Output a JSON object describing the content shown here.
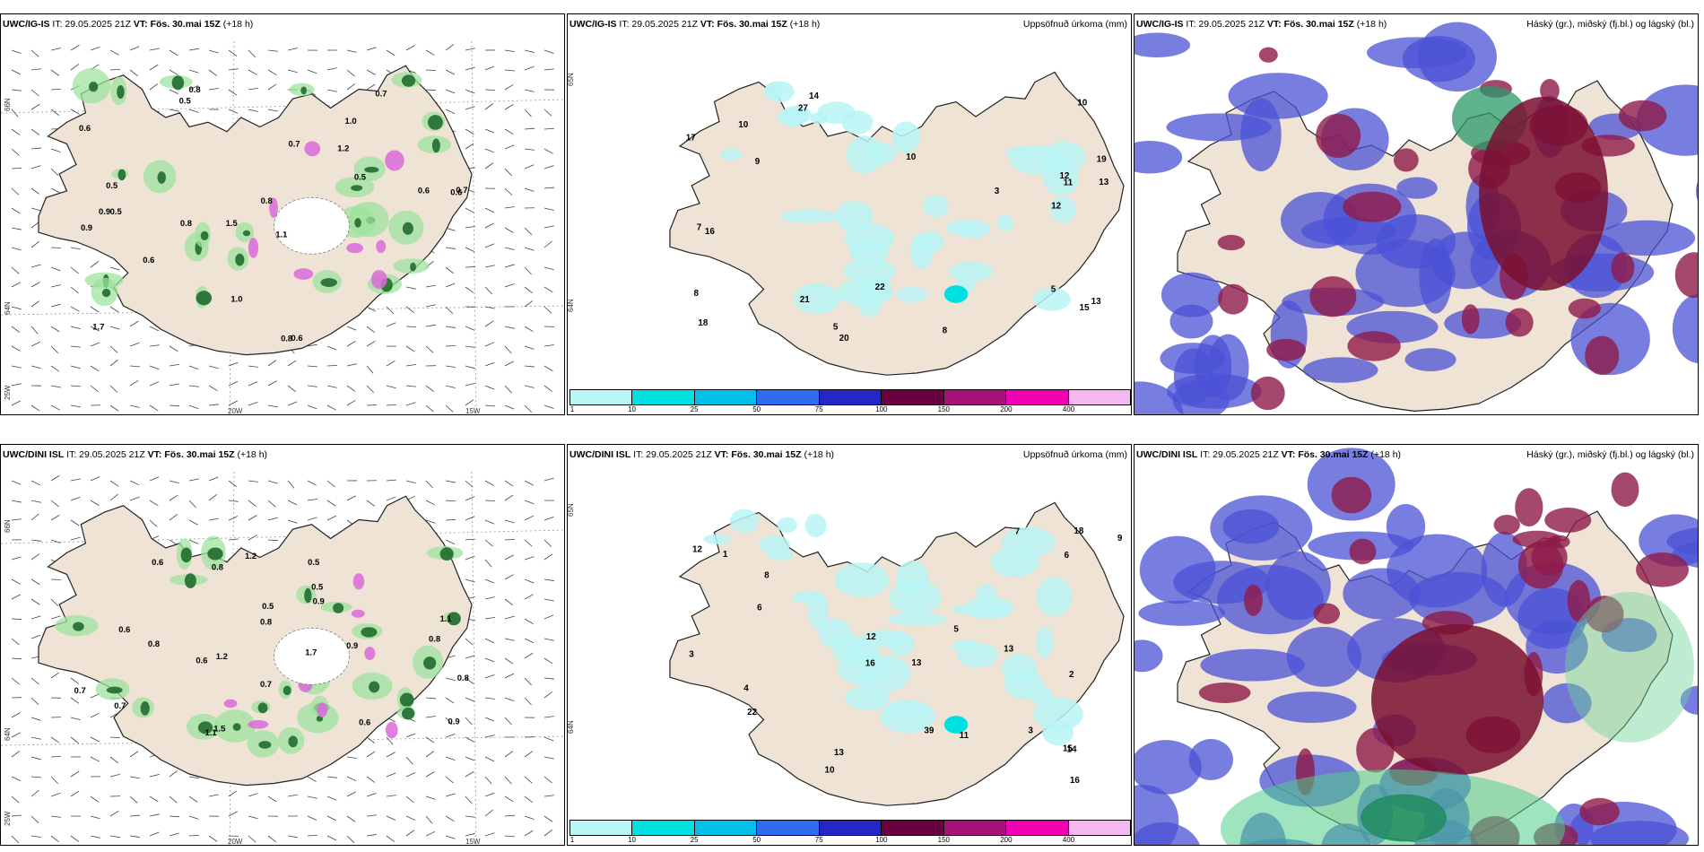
{
  "colorbar": {
    "ticks": [
      "1",
      "10",
      "25",
      "50",
      "75",
      "100",
      "150",
      "200",
      "400"
    ],
    "colors": [
      "#b9f5f5",
      "#00e0e0",
      "#00bfe8",
      "#2f6cf0",
      "#2525c8",
      "#6a0040",
      "#a8107a",
      "#f000b0",
      "#f4b8f0"
    ]
  },
  "rows": [
    {
      "model_label": "UWC/IG-IS",
      "panels": [
        {
          "name": "windmap",
          "it": "IT: 29.05.2025 21Z",
          "vt_label": "VT:",
          "vt_value": "Fös. 30.mai 15Z",
          "lead": "(+18 h)",
          "right_title": "",
          "lat_labels": [
            "66N",
            "64N",
            "25W"
          ],
          "lon_labels": [
            "20W",
            "15W"
          ],
          "values": [
            "0.8",
            "1.0",
            "0.6",
            "1.5",
            "1.1",
            "0.5",
            "0.6",
            "1.2",
            "0.9",
            "0.7",
            "0.8",
            "1.7",
            "0.5",
            "0.8",
            "0.8",
            "0.6",
            "1.0",
            "0.7",
            "0.5",
            "0.6",
            "0.5",
            "0.9",
            "0.7",
            "0.6"
          ]
        },
        {
          "name": "precip",
          "it": "IT: 29.05.2025 21Z",
          "vt_label": "VT:",
          "vt_value": "Fös. 30.mai 15Z",
          "lead": "(+18 h)",
          "right_title": "Uppsöfnuð úrkoma (mm)",
          "lat_labels": [
            "65N",
            "64N"
          ],
          "values": [
            "5",
            "19",
            "13",
            "10",
            "18",
            "14",
            "12",
            "21",
            "10",
            "9",
            "13",
            "17",
            "12",
            "20",
            "8",
            "10",
            "15",
            "27",
            "22",
            "11",
            "7",
            "16",
            "8",
            "3",
            "5"
          ]
        },
        {
          "name": "cloud",
          "it": "IT: 29.05.2025 21Z",
          "vt_label": "VT:",
          "vt_value": "Fös. 30.mai 15Z",
          "lead": "(+18 h)",
          "right_title": "Háský (gr.), miðský (fj.bl.) og lágský (bl.)"
        }
      ]
    },
    {
      "model_label": "UWC/DINI ISL",
      "panels": [
        {
          "name": "windmap",
          "it": "IT: 29.05.2025 21Z",
          "vt_label": "VT:",
          "vt_value": "Fös. 30.mai 15Z",
          "lead": "(+18 h)",
          "right_title": "",
          "lat_labels": [
            "66N",
            "64N",
            "25W"
          ],
          "lon_labels": [
            "20W",
            "15W"
          ],
          "values": [
            "1.1",
            "0.5",
            "0.8",
            "1.1",
            "0.6",
            "0.9",
            "0.5",
            "1.2",
            "0.8",
            "0.6",
            "0.8",
            "1.7",
            "0.9",
            "1.2",
            "0.8",
            "0.5",
            "0.6",
            "0.7",
            "0.7",
            "1.5",
            "0.8",
            "0.6",
            "0.7",
            "0.9"
          ]
        },
        {
          "name": "precip",
          "it": "IT: 29.05.2025 21Z",
          "vt_label": "VT:",
          "vt_value": "Fös. 30.mai 15Z",
          "lead": "(+18 h)",
          "right_title": "Uppsöfnuð úrkoma (mm)",
          "lat_labels": [
            "65N",
            "64N"
          ],
          "values": [
            "2",
            "13",
            "14",
            "12",
            "15",
            "18",
            "12",
            "9",
            "10",
            "13",
            "16",
            "39",
            "22",
            "13",
            "16",
            "6",
            "5",
            "11",
            "7",
            "3",
            "4",
            "8",
            "1",
            "3",
            "6"
          ]
        },
        {
          "name": "cloud",
          "it": "IT: 29.05.2025 21Z",
          "vt_label": "VT:",
          "vt_value": "Fös. 30.mai 15Z",
          "lead": "(+18 h)",
          "right_title": "Háský (gr.), miðský (fj.bl.) og lágský (bl.)"
        }
      ]
    }
  ]
}
